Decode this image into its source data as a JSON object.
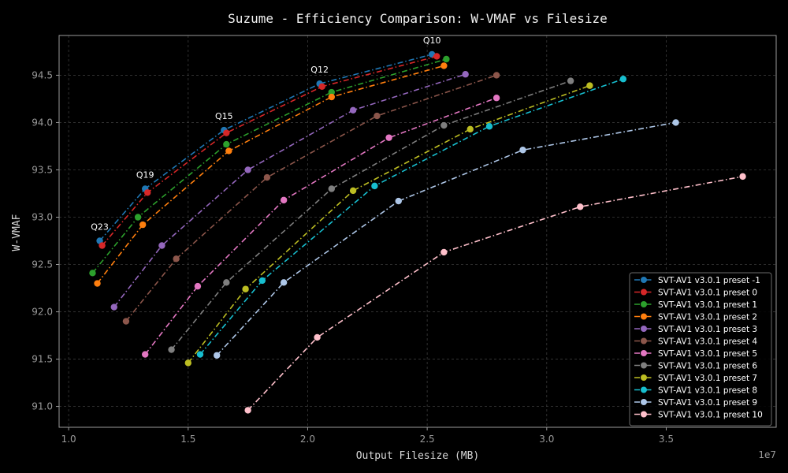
{
  "chart_data": {
    "type": "line",
    "title": "Suzume - Efficiency Comparison: W-VMAF vs Filesize",
    "xlabel": "Output Filesize (MB)",
    "ylabel": "W-VMAF",
    "x_offset_label": "1e7",
    "xlim": [
      0.96,
      3.96
    ],
    "ylim": [
      90.78,
      94.92
    ],
    "xticks": [
      1.0,
      1.5,
      2.0,
      2.5,
      3.0,
      3.5
    ],
    "xtick_labels": [
      "1.0",
      "1.5",
      "2.0",
      "2.5",
      "3.0",
      "3.5"
    ],
    "yticks": [
      91.0,
      91.5,
      92.0,
      92.5,
      93.0,
      93.5,
      94.0,
      94.5
    ],
    "ytick_labels": [
      "91.0",
      "91.5",
      "92.0",
      "92.5",
      "93.0",
      "93.5",
      "94.0",
      "94.5"
    ],
    "grid": true,
    "legend_position": "bottom-right",
    "colors": {
      "background": "#000000",
      "grid": "#3a3a3a",
      "axes": "#9a9a9a"
    },
    "annotations": [
      {
        "text": "Q23",
        "x": 1.13,
        "y": 92.75
      },
      {
        "text": "Q19",
        "x": 1.32,
        "y": 93.3
      },
      {
        "text": "Q15",
        "x": 1.65,
        "y": 93.92
      },
      {
        "text": "Q12",
        "x": 2.05,
        "y": 94.41
      },
      {
        "text": "Q10",
        "x": 2.52,
        "y": 94.72
      }
    ],
    "series": [
      {
        "name": "SVT-AV1 v3.0.1 preset -1",
        "color": "#1f77b4",
        "x": [
          1.13,
          1.32,
          1.65,
          2.05,
          2.52
        ],
        "y": [
          92.75,
          93.3,
          93.92,
          94.41,
          94.72
        ]
      },
      {
        "name": "SVT-AV1 v3.0.1 preset 0",
        "color": "#d62728",
        "x": [
          1.14,
          1.33,
          1.66,
          2.06,
          2.54
        ],
        "y": [
          92.7,
          93.26,
          93.89,
          94.38,
          94.7
        ]
      },
      {
        "name": "SVT-AV1 v3.0.1 preset 1",
        "color": "#2ca02c",
        "x": [
          1.1,
          1.29,
          1.66,
          2.1,
          2.58
        ],
        "y": [
          92.41,
          93.0,
          93.77,
          94.32,
          94.67
        ]
      },
      {
        "name": "SVT-AV1 v3.0.1 preset 2",
        "color": "#ff7f0e",
        "x": [
          1.12,
          1.31,
          1.67,
          2.1,
          2.57
        ],
        "y": [
          92.3,
          92.92,
          93.7,
          94.27,
          94.6
        ]
      },
      {
        "name": "SVT-AV1 v3.0.1 preset 3",
        "color": "#9467bd",
        "x": [
          1.19,
          1.39,
          1.75,
          2.19,
          2.66
        ],
        "y": [
          92.05,
          92.7,
          93.5,
          94.13,
          94.51
        ]
      },
      {
        "name": "SVT-AV1 v3.0.1 preset 4",
        "color": "#8c564b",
        "x": [
          1.24,
          1.45,
          1.83,
          2.29,
          2.79
        ],
        "y": [
          91.9,
          92.56,
          93.42,
          94.07,
          94.5
        ]
      },
      {
        "name": "SVT-AV1 v3.0.1 preset 5",
        "color": "#e377c2",
        "x": [
          1.32,
          1.54,
          1.9,
          2.34,
          2.79
        ],
        "y": [
          91.55,
          92.27,
          93.18,
          93.84,
          94.26
        ]
      },
      {
        "name": "SVT-AV1 v3.0.1 preset 6",
        "color": "#7f7f7f",
        "x": [
          1.43,
          1.66,
          2.1,
          2.57,
          3.1
        ],
        "y": [
          91.6,
          92.31,
          93.3,
          93.97,
          94.44
        ]
      },
      {
        "name": "SVT-AV1 v3.0.1 preset 7",
        "color": "#bcbd22",
        "x": [
          1.5,
          1.74,
          2.19,
          2.68,
          3.18
        ],
        "y": [
          91.46,
          92.24,
          93.28,
          93.93,
          94.39
        ]
      },
      {
        "name": "SVT-AV1 v3.0.1 preset 8",
        "color": "#17becf",
        "x": [
          1.55,
          1.81,
          2.28,
          2.76,
          3.32
        ],
        "y": [
          91.55,
          92.33,
          93.33,
          93.96,
          94.46
        ]
      },
      {
        "name": "SVT-AV1 v3.0.1 preset 9",
        "color": "#aec7e8",
        "x": [
          1.62,
          1.9,
          2.38,
          2.9,
          3.54
        ],
        "y": [
          91.54,
          92.31,
          93.17,
          93.71,
          94.0
        ]
      },
      {
        "name": "SVT-AV1 v3.0.1 preset 10",
        "color": "#ffc0cb",
        "x": [
          1.75,
          2.04,
          2.57,
          3.14,
          3.82
        ],
        "y": [
          90.96,
          91.73,
          92.63,
          93.11,
          93.43
        ]
      }
    ]
  }
}
